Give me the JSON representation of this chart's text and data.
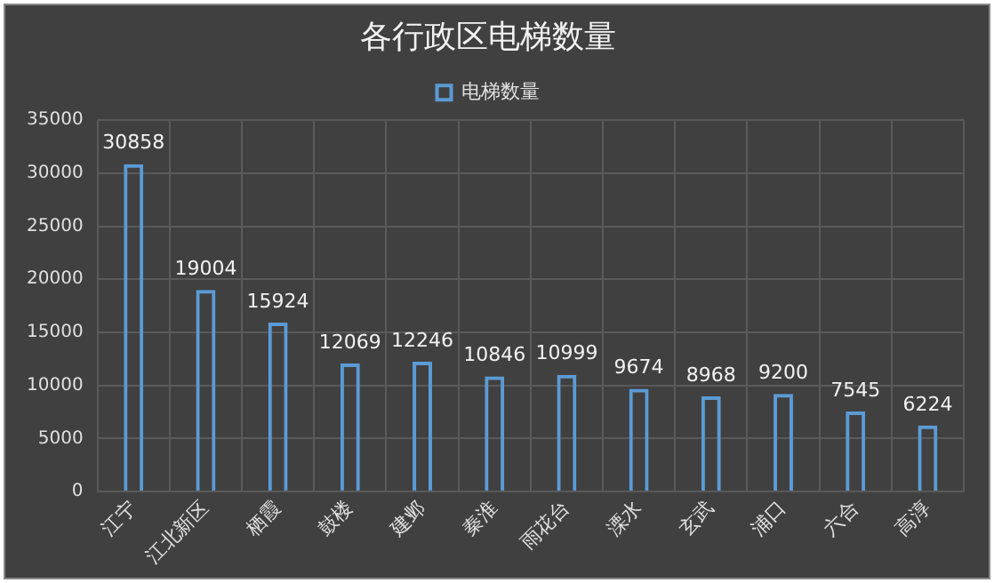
{
  "chart_data": {
    "type": "bar",
    "title": "各行政区电梯数量",
    "categories": [
      "江宁",
      "江北新区",
      "栖霞",
      "鼓楼",
      "建邺",
      "秦淮",
      "雨花台",
      "溧水",
      "玄武",
      "浦口",
      "六合",
      "高淳"
    ],
    "series": [
      {
        "name": "电梯数量",
        "color": "#5b9bd5",
        "values": [
          30858,
          19004,
          15924,
          12069,
          12246,
          10846,
          10999,
          9674,
          8968,
          9200,
          7545,
          6224
        ]
      }
    ],
    "ylim": [
      0,
      35000
    ],
    "yticks": [
      0,
      5000,
      10000,
      15000,
      20000,
      25000,
      30000,
      35000
    ],
    "grid": true,
    "legend": "top",
    "data_labels": true
  }
}
